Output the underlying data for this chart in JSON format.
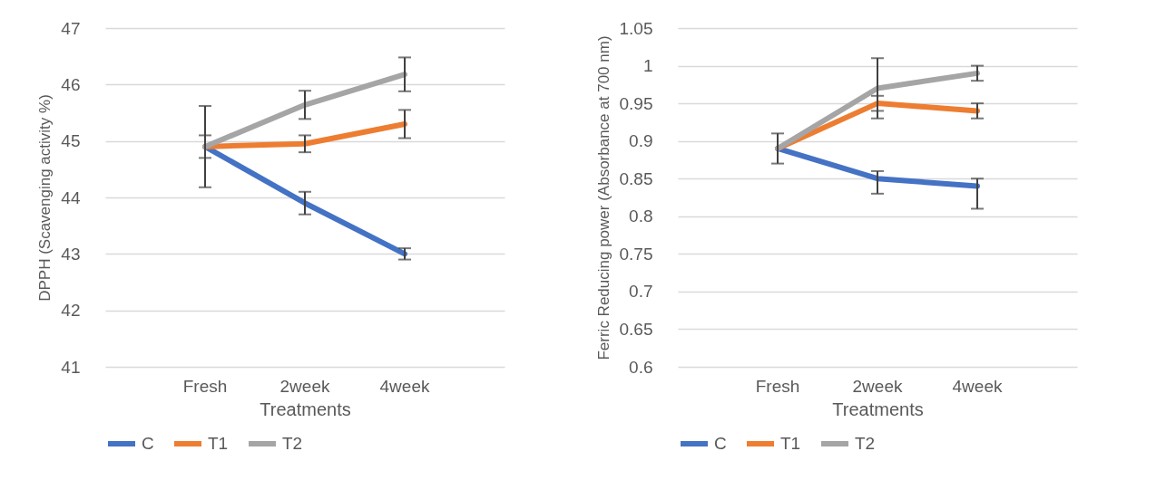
{
  "chart_data": [
    {
      "type": "line",
      "xlabel": "Treatments",
      "ylabel": "DPPH (Scavenging activity %)",
      "categories": [
        "Fresh",
        "2week",
        "4week"
      ],
      "ylim": [
        41,
        47
      ],
      "yticks": [
        41,
        42,
        43,
        44,
        45,
        46,
        47
      ],
      "grid": "y",
      "legend": "bottom",
      "series": [
        {
          "name": "C",
          "color": "#4472c4",
          "values": [
            44.9,
            43.9,
            43.0
          ],
          "errors": [
            0.2,
            0.2,
            0.1
          ]
        },
        {
          "name": "T1",
          "color": "#ed7d31",
          "values": [
            44.9,
            44.95,
            45.3
          ],
          "errors": [
            null,
            0.15,
            0.25
          ]
        },
        {
          "name": "T2",
          "color": "#a5a5a5",
          "values": [
            44.9,
            45.64,
            46.18
          ],
          "errors": [
            0.72,
            0.25,
            0.3
          ]
        }
      ]
    },
    {
      "type": "line",
      "xlabel": "Treatments",
      "ylabel": "Ferric Reducing power (Absorbance at 700 nm)",
      "categories": [
        "Fresh",
        "2week",
        "4week"
      ],
      "ylim": [
        0.6,
        1.05
      ],
      "yticks": [
        0.6,
        0.65,
        0.7,
        0.75,
        0.8,
        0.85,
        0.9,
        0.95,
        1,
        1.05
      ],
      "grid": "y",
      "legend": "bottom",
      "series": [
        {
          "name": "C",
          "color": "#4472c4",
          "values": [
            0.89,
            0.85,
            0.84
          ],
          "errors": [
            0.02,
            [
              0.83,
              0.86
            ],
            [
              0.81,
              0.85
            ]
          ]
        },
        {
          "name": "T1",
          "color": "#ed7d31",
          "values": [
            0.89,
            0.95,
            0.94
          ],
          "errors": [
            null,
            0.01,
            0.01
          ]
        },
        {
          "name": "T2",
          "color": "#a5a5a5",
          "values": [
            0.89,
            0.97,
            0.99
          ],
          "errors": [
            null,
            0.04,
            0.01
          ]
        }
      ]
    }
  ]
}
